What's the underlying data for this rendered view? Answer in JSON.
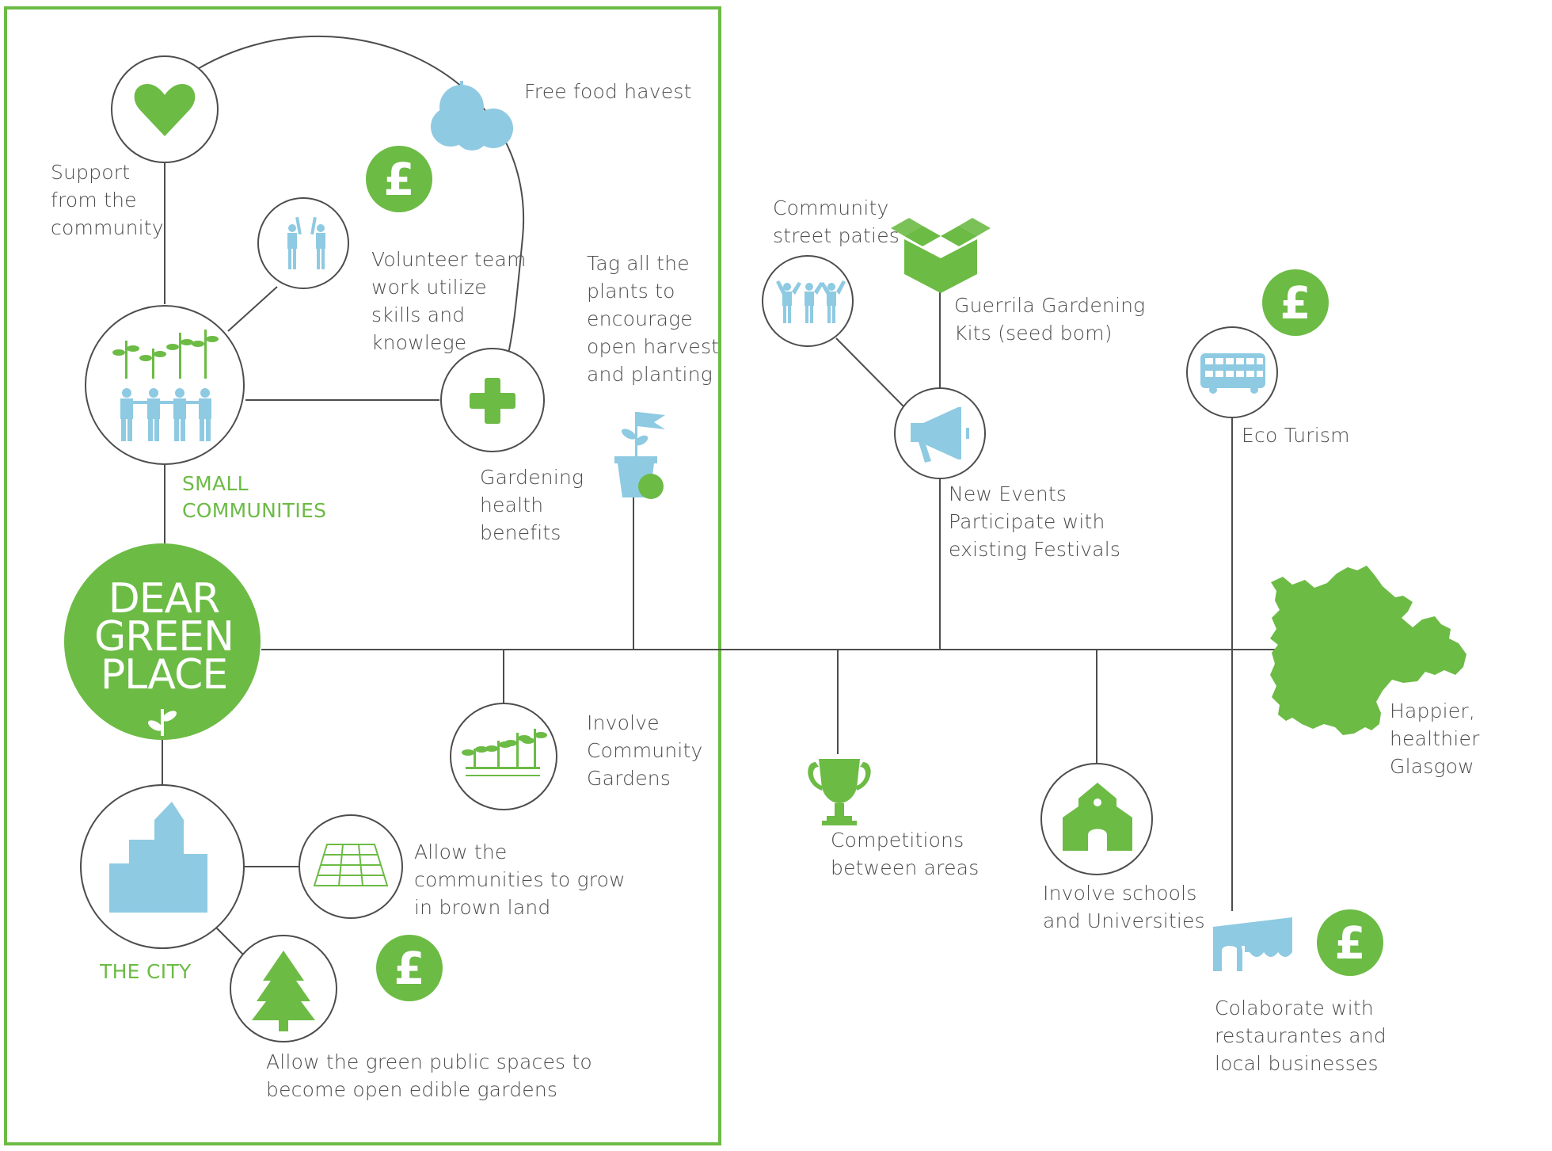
{
  "colors": {
    "accent_green": "#6cbb45",
    "icon_blue": "#8ecae2",
    "line_gray": "#4d4d4d",
    "frame_green": "#6cbb45"
  },
  "hub": {
    "title": "DEAR\nGREEN\nPLACE"
  },
  "groups": {
    "small_communities": "SMALL\nCOMMUNITIES",
    "the_city": "THE CITY"
  },
  "labels": {
    "support": "Support\nfrom the\ncommunity",
    "free_food": "Free food havest",
    "volunteer": "Volunteer team\nwork utilize\nskills and\nknowlege",
    "tag_plants": "Tag all the\nplants to\nencourage\nopen harvest\nand planting",
    "gardening": "Gardening\nhealth\nbenefits",
    "community_gardens": "Involve\nCommunity\nGardens",
    "brown_land": "Allow the\ncommunities to grow\nin brown land",
    "green_spaces": "Allow the green public spaces to\nbecome open edible gardens",
    "street_parties": "Community\nstreet paties",
    "guerrila": "Guerrila Gardening\nKits (seed bom)",
    "new_events": "New Events\nParticipate with\nexisting Festivals",
    "competitions": "Competitions\nbetween areas",
    "schools": "Involve schools\nand Universities",
    "eco_tourism": "Eco Turism",
    "glasgow": "Happier, healthier\nGlasgow",
    "collaborate": "Colaborate with\nrestaurantes and\nlocal businesses"
  },
  "currency_symbol": "£",
  "icons": [
    "heart-icon",
    "apples-icon",
    "pound-icon",
    "volunteers-icon",
    "community-icon",
    "plus-icon",
    "flag-pot-icon",
    "seedlings-icon",
    "city-icon",
    "grid-icon",
    "tree-icon",
    "people-icon",
    "box-icon",
    "megaphone-icon",
    "trophy-icon",
    "school-icon",
    "bus-icon",
    "glasgow-map-icon",
    "shop-icon"
  ]
}
